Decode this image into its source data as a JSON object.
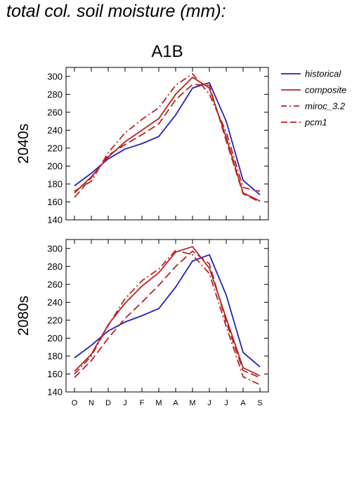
{
  "figure_title": "total col. soil moisture (mm):",
  "scenario": "A1B",
  "colors": {
    "historical": "#2222bb",
    "projection": "#bb2222"
  },
  "chart_data": [
    {
      "type": "line",
      "ylabel": "2040s",
      "ylim": [
        140,
        310
      ],
      "yticks": [
        140,
        160,
        180,
        200,
        220,
        240,
        260,
        280,
        300
      ],
      "categories": [
        "O",
        "N",
        "D",
        "J",
        "F",
        "M",
        "A",
        "M",
        "J",
        "J",
        "A",
        "S"
      ],
      "legend_position": "right",
      "series": [
        {
          "name": "historical",
          "color": "#2222bb",
          "dash": "solid",
          "values": [
            178,
            192,
            208,
            219,
            225,
            233,
            257,
            287,
            293,
            250,
            184,
            168
          ]
        },
        {
          "name": "composite",
          "color": "#bb2222",
          "dash": "solid",
          "values": [
            170,
            188,
            210,
            227,
            240,
            253,
            280,
            299,
            287,
            232,
            170,
            161
          ]
        },
        {
          "name": "miroc_3.2",
          "color": "#bb2222",
          "dash": "dashdot",
          "values": [
            172,
            183,
            215,
            237,
            252,
            265,
            290,
            303,
            280,
            238,
            176,
            172
          ]
        },
        {
          "name": "pcm1",
          "color": "#bb2222",
          "dash": "dash",
          "values": [
            165,
            187,
            212,
            224,
            235,
            247,
            274,
            291,
            290,
            228,
            169,
            160
          ]
        }
      ]
    },
    {
      "type": "line",
      "ylabel": "2080s",
      "ylim": [
        140,
        310
      ],
      "yticks": [
        140,
        160,
        180,
        200,
        220,
        240,
        260,
        280,
        300
      ],
      "categories": [
        "O",
        "N",
        "D",
        "J",
        "F",
        "M",
        "A",
        "M",
        "J",
        "J",
        "A",
        "S"
      ],
      "series": [
        {
          "name": "historical",
          "color": "#2222bb",
          "dash": "solid",
          "values": [
            178,
            192,
            208,
            218,
            225,
            233,
            257,
            286,
            293,
            248,
            184,
            168
          ]
        },
        {
          "name": "composite",
          "color": "#bb2222",
          "dash": "solid",
          "values": [
            163,
            182,
            215,
            239,
            258,
            273,
            296,
            302,
            278,
            222,
            167,
            158
          ]
        },
        {
          "name": "miroc_3.2",
          "color": "#bb2222",
          "dash": "dashdot",
          "values": [
            160,
            180,
            214,
            244,
            264,
            277,
            298,
            293,
            272,
            213,
            157,
            148
          ]
        },
        {
          "name": "pcm1",
          "color": "#bb2222",
          "dash": "dash",
          "values": [
            156,
            175,
            200,
            222,
            240,
            259,
            280,
            297,
            283,
            218,
            164,
            156
          ]
        }
      ]
    }
  ]
}
